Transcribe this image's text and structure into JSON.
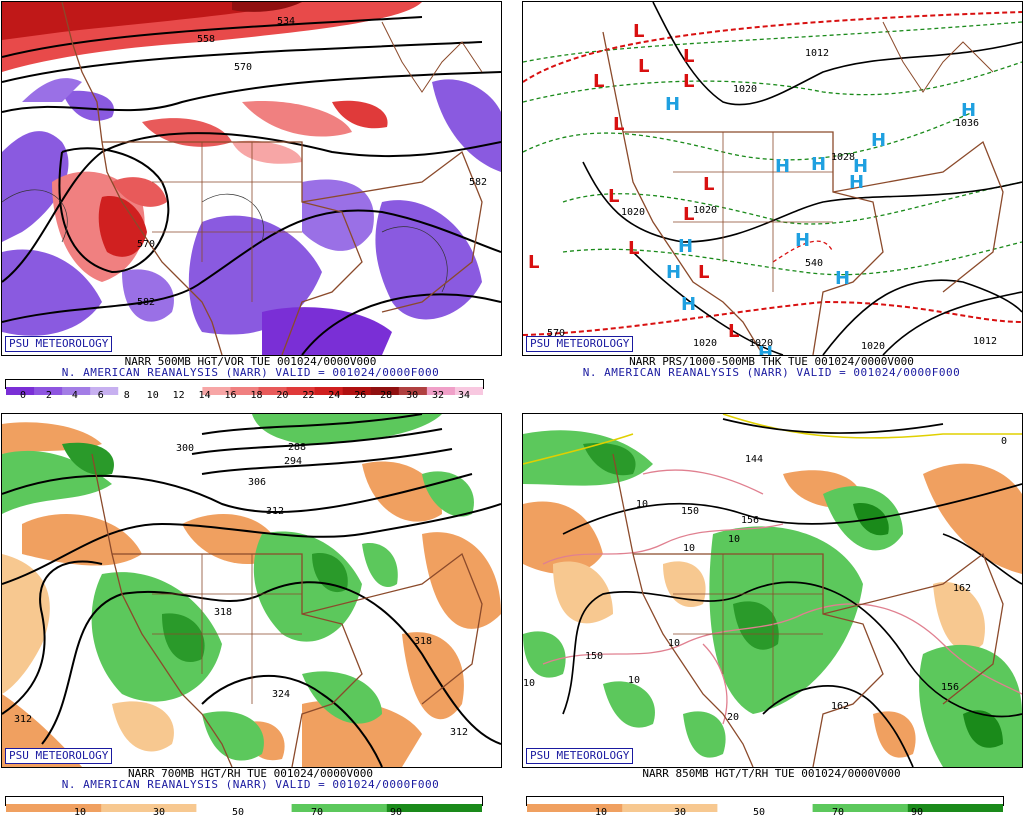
{
  "panels": [
    {
      "id": "top-left",
      "credit": "PSU METEOROLOGY",
      "title_line1": "NARR 500MB HGT/VOR TUE 001024/0000V000",
      "title_line2": "N. AMERICAN REANALYSIS (NARR) VALID = 001024/0000F000",
      "contour_labels": [
        "558",
        "570",
        "582",
        "570",
        "582",
        "534"
      ],
      "colorbar": {
        "labels": [
          "0",
          "2",
          "4",
          "6",
          "8",
          "10",
          "12",
          "14",
          "16",
          "18",
          "20",
          "22",
          "24",
          "26",
          "28",
          "30",
          "32",
          "34"
        ],
        "colors": [
          "#7a2fd6",
          "#8e55e0",
          "#a37de6",
          "#c7b0f0",
          "#ffffff",
          "#ffffff",
          "#ffffff",
          "#f7a6a6",
          "#f08080",
          "#e85a5a",
          "#e03a3a",
          "#d01f1f",
          "#b01010",
          "#901010",
          "#b04040",
          "#f0a0c8",
          "#f8c8e0"
        ]
      }
    },
    {
      "id": "top-right",
      "credit": "PSU METEOROLOGY",
      "title_line1": "NARR PRS/1000-500MB THK TUE 001024/0000V000",
      "title_line2": "N. AMERICAN REANALYSIS (NARR) VALID = 001024/0000F000",
      "contour_labels": [
        "1012",
        "1020",
        "1020",
        "1020",
        "1028",
        "1036",
        "1020",
        "1020",
        "1020",
        "1012",
        "570",
        "540"
      ],
      "highs_label": "H",
      "lows_label": "L"
    },
    {
      "id": "bottom-left",
      "credit": "PSU METEOROLOGY",
      "title_line1": "NARR 700MB HGT/RH TUE 001024/0000V000",
      "title_line2": "N. AMERICAN REANALYSIS (NARR) VALID = 001024/0000F000",
      "contour_labels": [
        "300",
        "288",
        "294",
        "306",
        "312",
        "318",
        "318",
        "324",
        "312",
        "312"
      ],
      "colorbar": {
        "labels": [
          "10",
          "30",
          "50",
          "70",
          "90"
        ],
        "colors": [
          "#f0a060",
          "#f7c890",
          "#ffffff",
          "#5cc85c",
          "#1a8a1a"
        ]
      }
    },
    {
      "id": "bottom-right",
      "credit": "PSU METEOROLOGY",
      "title_line1": "NARR 850MB HGT/T/RH TUE 001024/0000V000",
      "title_line2": "",
      "contour_labels": [
        "150",
        "156",
        "150",
        "162",
        "156",
        "162",
        "144"
      ],
      "temp_labels": [
        "10",
        "10",
        "10",
        "10",
        "10",
        "10",
        "20",
        "0"
      ],
      "colorbar": {
        "labels": [
          "10",
          "30",
          "50",
          "70",
          "90"
        ],
        "colors": [
          "#f0a060",
          "#f7c890",
          "#ffffff",
          "#5cc85c",
          "#1a8a1a"
        ]
      }
    }
  ]
}
